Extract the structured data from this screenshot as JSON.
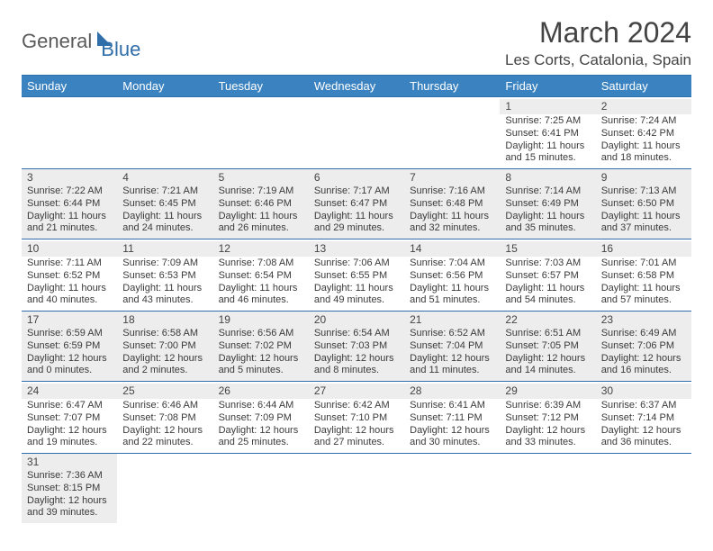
{
  "logo": {
    "part1": "General",
    "part2": "Blue"
  },
  "title": "March 2024",
  "location": "Les Corts, Catalonia, Spain",
  "colors": {
    "header_bg": "#3b83c0",
    "border": "#2f6ea8",
    "stripe": "#ededed"
  },
  "weekdays": [
    "Sunday",
    "Monday",
    "Tuesday",
    "Wednesday",
    "Thursday",
    "Friday",
    "Saturday"
  ],
  "weeks": [
    [
      null,
      null,
      null,
      null,
      null,
      {
        "n": "1",
        "sr": "Sunrise: 7:25 AM",
        "ss": "Sunset: 6:41 PM",
        "d1": "Daylight: 11 hours",
        "d2": "and 15 minutes."
      },
      {
        "n": "2",
        "sr": "Sunrise: 7:24 AM",
        "ss": "Sunset: 6:42 PM",
        "d1": "Daylight: 11 hours",
        "d2": "and 18 minutes."
      }
    ],
    [
      {
        "n": "3",
        "sr": "Sunrise: 7:22 AM",
        "ss": "Sunset: 6:44 PM",
        "d1": "Daylight: 11 hours",
        "d2": "and 21 minutes."
      },
      {
        "n": "4",
        "sr": "Sunrise: 7:21 AM",
        "ss": "Sunset: 6:45 PM",
        "d1": "Daylight: 11 hours",
        "d2": "and 24 minutes."
      },
      {
        "n": "5",
        "sr": "Sunrise: 7:19 AM",
        "ss": "Sunset: 6:46 PM",
        "d1": "Daylight: 11 hours",
        "d2": "and 26 minutes."
      },
      {
        "n": "6",
        "sr": "Sunrise: 7:17 AM",
        "ss": "Sunset: 6:47 PM",
        "d1": "Daylight: 11 hours",
        "d2": "and 29 minutes."
      },
      {
        "n": "7",
        "sr": "Sunrise: 7:16 AM",
        "ss": "Sunset: 6:48 PM",
        "d1": "Daylight: 11 hours",
        "d2": "and 32 minutes."
      },
      {
        "n": "8",
        "sr": "Sunrise: 7:14 AM",
        "ss": "Sunset: 6:49 PM",
        "d1": "Daylight: 11 hours",
        "d2": "and 35 minutes."
      },
      {
        "n": "9",
        "sr": "Sunrise: 7:13 AM",
        "ss": "Sunset: 6:50 PM",
        "d1": "Daylight: 11 hours",
        "d2": "and 37 minutes."
      }
    ],
    [
      {
        "n": "10",
        "sr": "Sunrise: 7:11 AM",
        "ss": "Sunset: 6:52 PM",
        "d1": "Daylight: 11 hours",
        "d2": "and 40 minutes."
      },
      {
        "n": "11",
        "sr": "Sunrise: 7:09 AM",
        "ss": "Sunset: 6:53 PM",
        "d1": "Daylight: 11 hours",
        "d2": "and 43 minutes."
      },
      {
        "n": "12",
        "sr": "Sunrise: 7:08 AM",
        "ss": "Sunset: 6:54 PM",
        "d1": "Daylight: 11 hours",
        "d2": "and 46 minutes."
      },
      {
        "n": "13",
        "sr": "Sunrise: 7:06 AM",
        "ss": "Sunset: 6:55 PM",
        "d1": "Daylight: 11 hours",
        "d2": "and 49 minutes."
      },
      {
        "n": "14",
        "sr": "Sunrise: 7:04 AM",
        "ss": "Sunset: 6:56 PM",
        "d1": "Daylight: 11 hours",
        "d2": "and 51 minutes."
      },
      {
        "n": "15",
        "sr": "Sunrise: 7:03 AM",
        "ss": "Sunset: 6:57 PM",
        "d1": "Daylight: 11 hours",
        "d2": "and 54 minutes."
      },
      {
        "n": "16",
        "sr": "Sunrise: 7:01 AM",
        "ss": "Sunset: 6:58 PM",
        "d1": "Daylight: 11 hours",
        "d2": "and 57 minutes."
      }
    ],
    [
      {
        "n": "17",
        "sr": "Sunrise: 6:59 AM",
        "ss": "Sunset: 6:59 PM",
        "d1": "Daylight: 12 hours",
        "d2": "and 0 minutes."
      },
      {
        "n": "18",
        "sr": "Sunrise: 6:58 AM",
        "ss": "Sunset: 7:00 PM",
        "d1": "Daylight: 12 hours",
        "d2": "and 2 minutes."
      },
      {
        "n": "19",
        "sr": "Sunrise: 6:56 AM",
        "ss": "Sunset: 7:02 PM",
        "d1": "Daylight: 12 hours",
        "d2": "and 5 minutes."
      },
      {
        "n": "20",
        "sr": "Sunrise: 6:54 AM",
        "ss": "Sunset: 7:03 PM",
        "d1": "Daylight: 12 hours",
        "d2": "and 8 minutes."
      },
      {
        "n": "21",
        "sr": "Sunrise: 6:52 AM",
        "ss": "Sunset: 7:04 PM",
        "d1": "Daylight: 12 hours",
        "d2": "and 11 minutes."
      },
      {
        "n": "22",
        "sr": "Sunrise: 6:51 AM",
        "ss": "Sunset: 7:05 PM",
        "d1": "Daylight: 12 hours",
        "d2": "and 14 minutes."
      },
      {
        "n": "23",
        "sr": "Sunrise: 6:49 AM",
        "ss": "Sunset: 7:06 PM",
        "d1": "Daylight: 12 hours",
        "d2": "and 16 minutes."
      }
    ],
    [
      {
        "n": "24",
        "sr": "Sunrise: 6:47 AM",
        "ss": "Sunset: 7:07 PM",
        "d1": "Daylight: 12 hours",
        "d2": "and 19 minutes."
      },
      {
        "n": "25",
        "sr": "Sunrise: 6:46 AM",
        "ss": "Sunset: 7:08 PM",
        "d1": "Daylight: 12 hours",
        "d2": "and 22 minutes."
      },
      {
        "n": "26",
        "sr": "Sunrise: 6:44 AM",
        "ss": "Sunset: 7:09 PM",
        "d1": "Daylight: 12 hours",
        "d2": "and 25 minutes."
      },
      {
        "n": "27",
        "sr": "Sunrise: 6:42 AM",
        "ss": "Sunset: 7:10 PM",
        "d1": "Daylight: 12 hours",
        "d2": "and 27 minutes."
      },
      {
        "n": "28",
        "sr": "Sunrise: 6:41 AM",
        "ss": "Sunset: 7:11 PM",
        "d1": "Daylight: 12 hours",
        "d2": "and 30 minutes."
      },
      {
        "n": "29",
        "sr": "Sunrise: 6:39 AM",
        "ss": "Sunset: 7:12 PM",
        "d1": "Daylight: 12 hours",
        "d2": "and 33 minutes."
      },
      {
        "n": "30",
        "sr": "Sunrise: 6:37 AM",
        "ss": "Sunset: 7:14 PM",
        "d1": "Daylight: 12 hours",
        "d2": "and 36 minutes."
      }
    ],
    [
      {
        "n": "31",
        "sr": "Sunrise: 7:36 AM",
        "ss": "Sunset: 8:15 PM",
        "d1": "Daylight: 12 hours",
        "d2": "and 39 minutes."
      },
      null,
      null,
      null,
      null,
      null,
      null
    ]
  ]
}
